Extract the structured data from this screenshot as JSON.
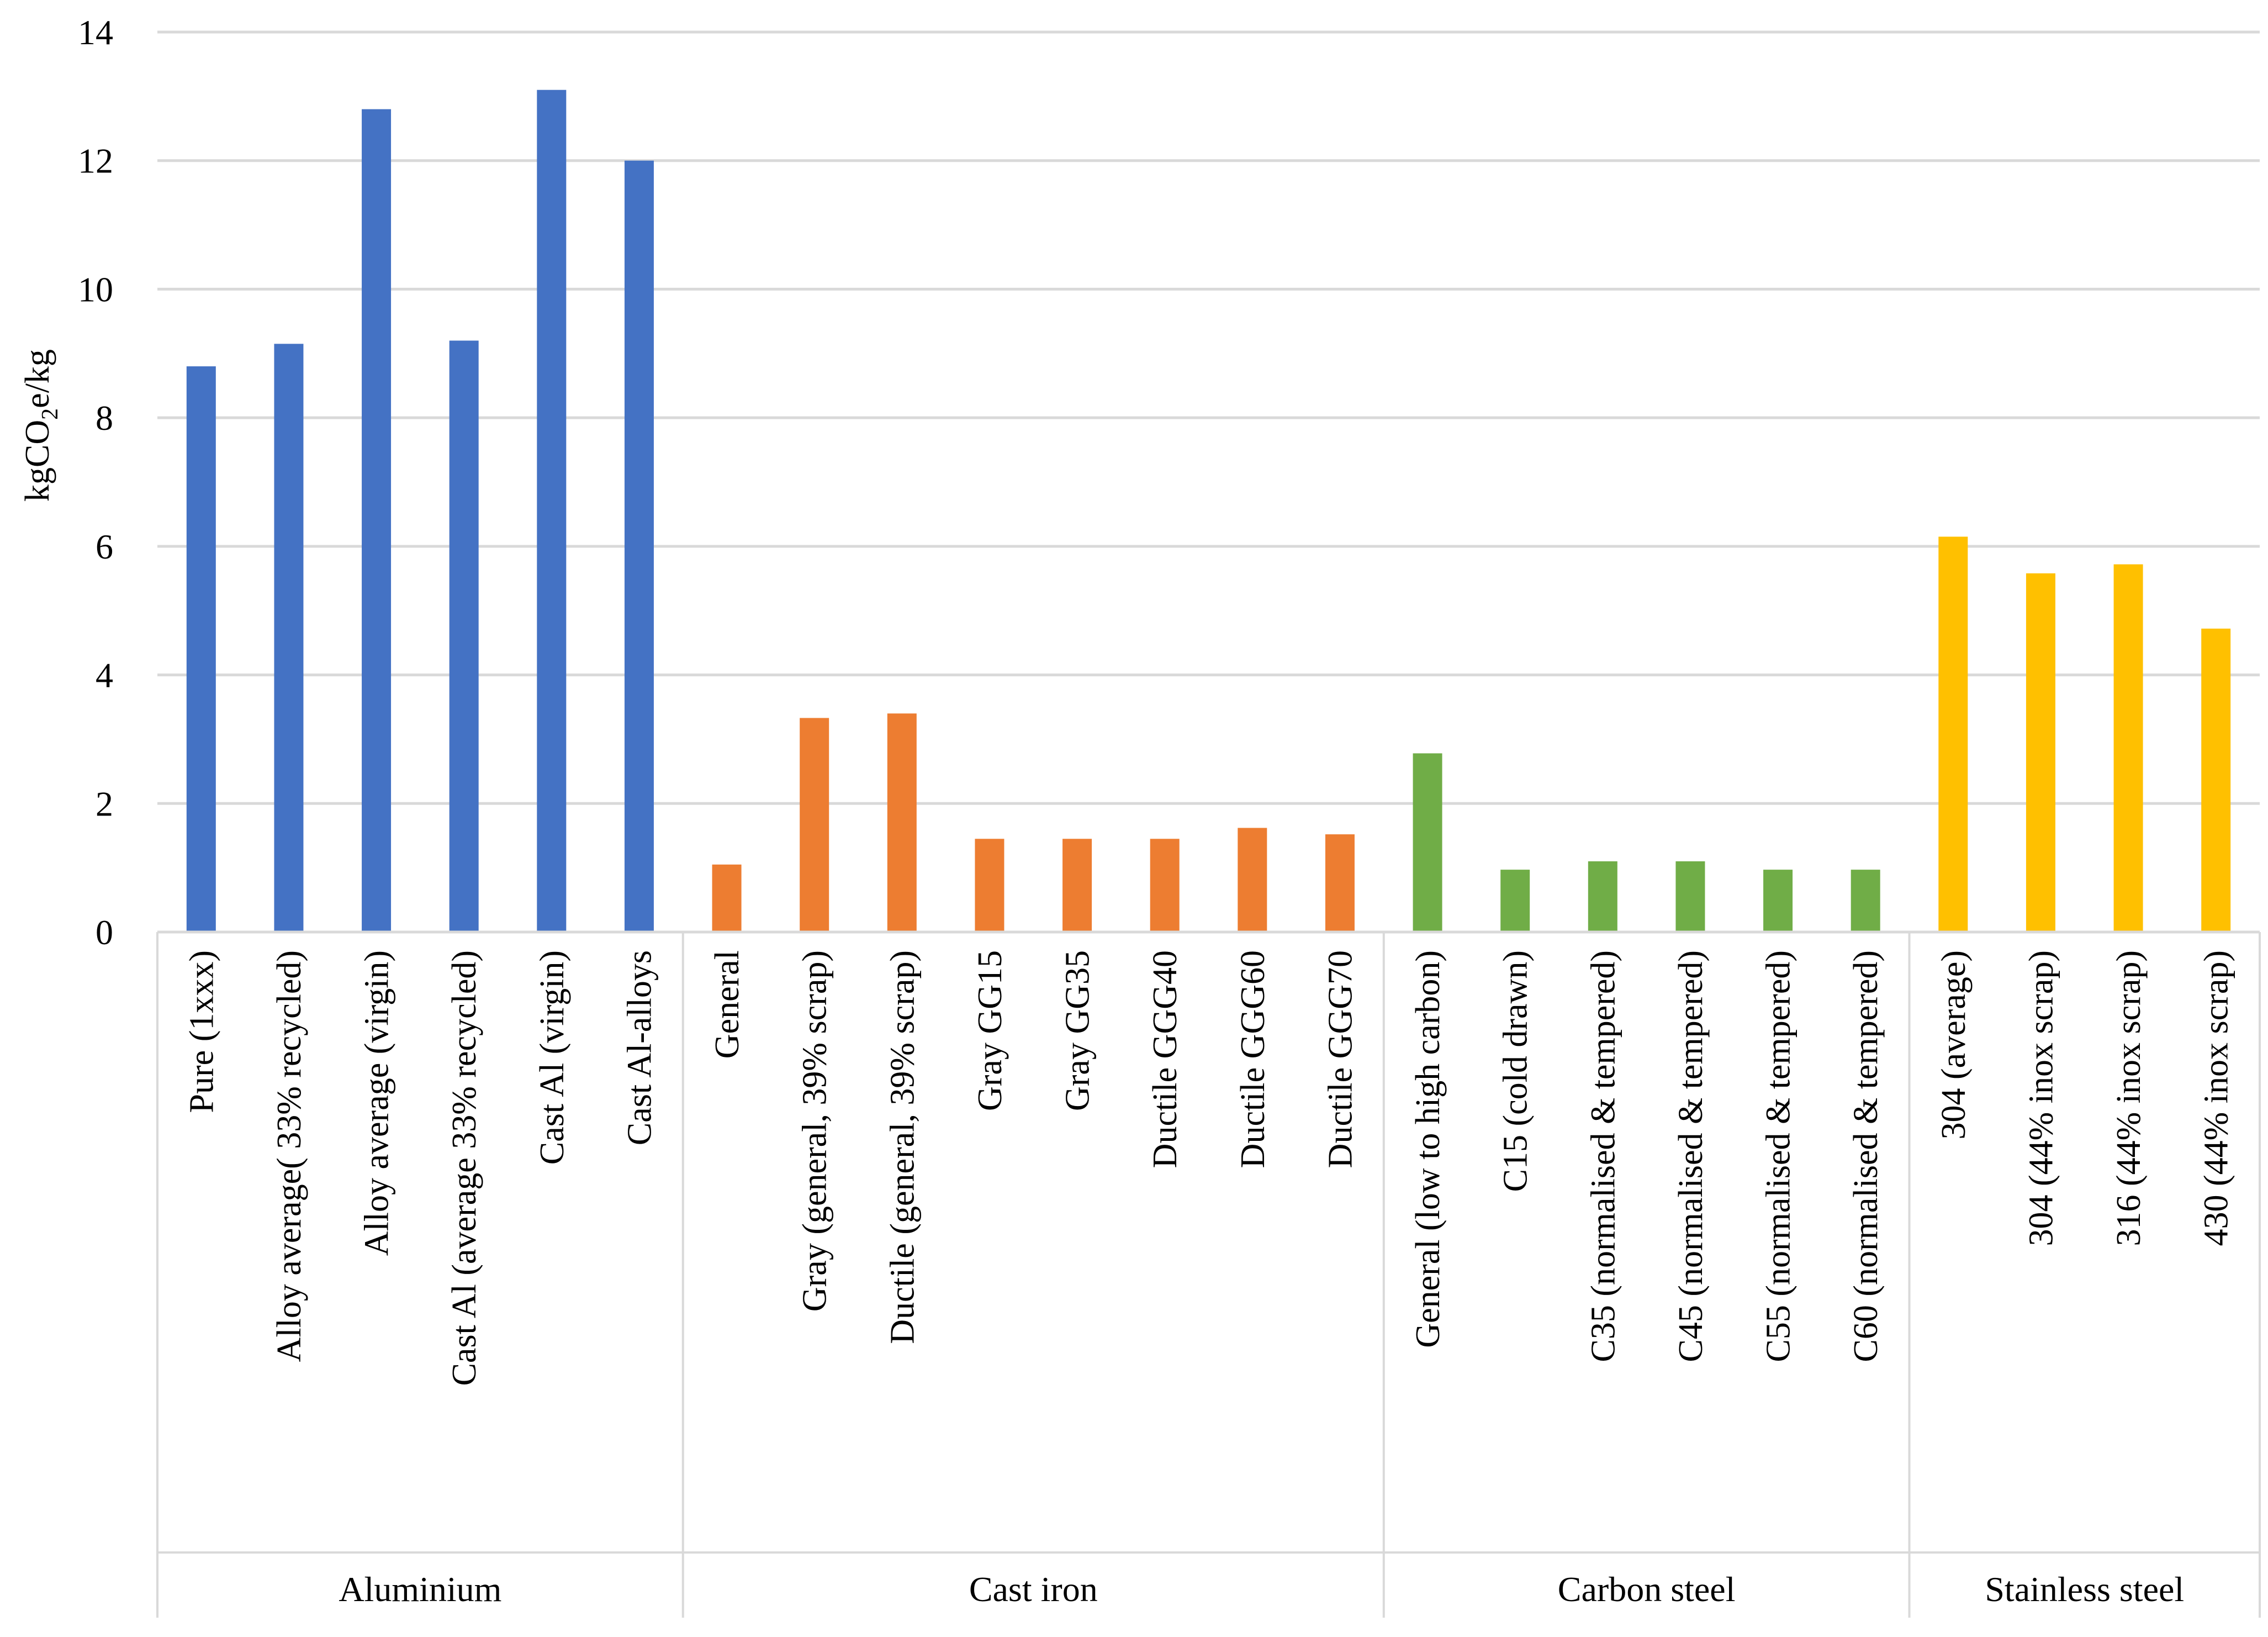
{
  "chart_data": {
    "type": "bar",
    "title": "",
    "xlabel": "",
    "ylabel": "kgCO2e/kg",
    "ylabel_parts": [
      "kgCO",
      "2",
      "e/kg"
    ],
    "ylim": [
      0,
      14
    ],
    "yticks": [
      "0",
      "2",
      "4",
      "6",
      "8",
      "10",
      "12",
      "14"
    ],
    "grid": true,
    "legend": "none",
    "groups": [
      {
        "name": "Aluminium",
        "color": "#4472c4",
        "categories": [
          "Pure (1xxx)",
          "Alloy average( 33% recycled)",
          "Alloy average (virgin)",
          "Cast Al (average 33% recycled)",
          "Cast Al (virgin)",
          "Cast Al-alloys"
        ],
        "values": [
          8.8,
          9.15,
          12.8,
          9.2,
          13.1,
          12.0
        ]
      },
      {
        "name": "Cast iron",
        "color": "#ed7d31",
        "categories": [
          "General",
          "Gray (general, 39% scrap)",
          "Ductile (general, 39% scrap)",
          "Gray GG15",
          "Gray GG35",
          "Ductile GGG40",
          "Ductile GGG60",
          "Ductile GGG70"
        ],
        "values": [
          1.05,
          3.33,
          3.4,
          1.45,
          1.45,
          1.45,
          1.62,
          1.52
        ]
      },
      {
        "name": "Carbon steel",
        "color": "#70ad47",
        "categories": [
          "General (low to high carbon)",
          "C15 (cold drawn)",
          "C35 (normalised & tempered)",
          "C45 (normalised & tempered)",
          "C55 (normalised & tempered)",
          "C60 (normalised & tempered)"
        ],
        "values": [
          2.78,
          0.97,
          1.1,
          1.1,
          0.97,
          0.97
        ]
      },
      {
        "name": "Stainless steel",
        "color": "#ffc000",
        "categories": [
          "304 (average)",
          "304 (44% inox scrap)",
          "316 (44% inox scrap)",
          "430 (44% inox scrap)"
        ],
        "values": [
          6.15,
          5.58,
          5.72,
          4.72
        ]
      }
    ]
  }
}
